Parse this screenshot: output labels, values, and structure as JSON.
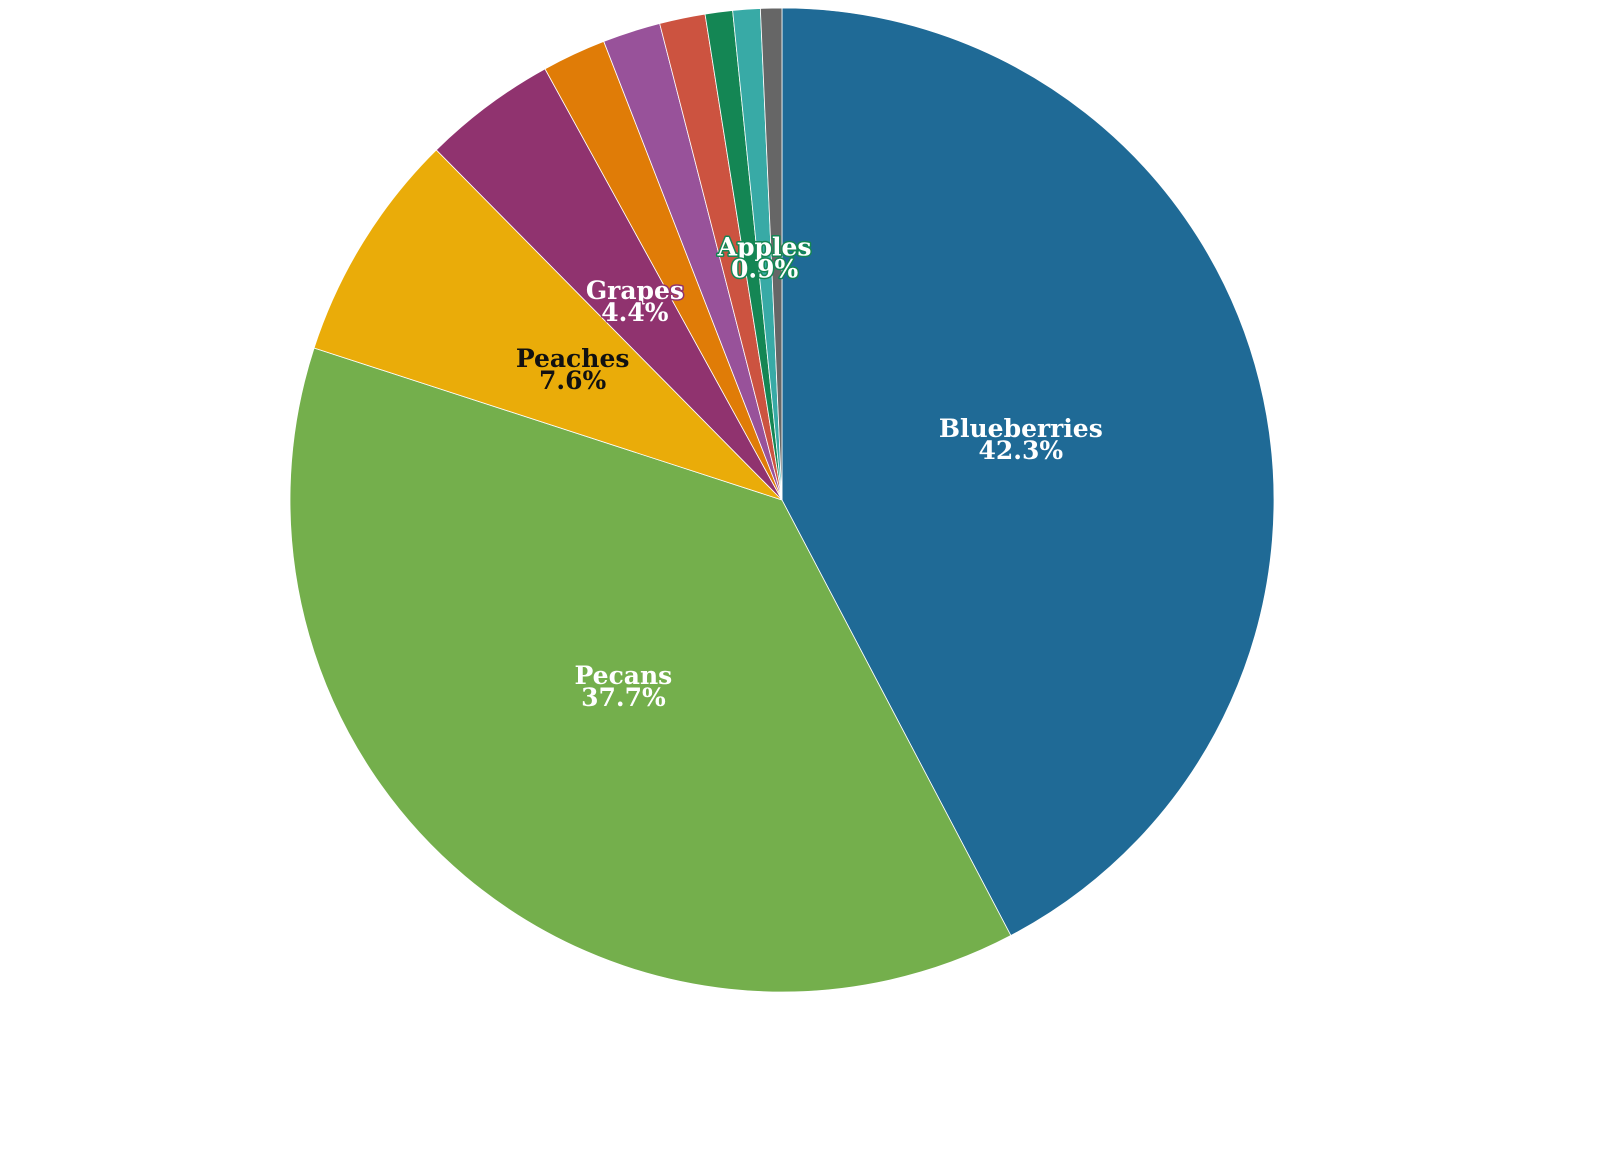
{
  "chart_data": {
    "type": "pie",
    "slices": [
      {
        "label": "Blueberries",
        "value": 42.3,
        "percent_label": "42.3%",
        "color": "#1f6a96",
        "show_label": true,
        "text_color": "#ffffff",
        "halo": "#1f6a96"
      },
      {
        "label": "Pecans",
        "value": 37.7,
        "percent_label": "37.7%",
        "color": "#74af4c",
        "show_label": true,
        "text_color": "#ffffff",
        "halo": "#74af4c"
      },
      {
        "label": "Peaches",
        "value": 7.6,
        "percent_label": "7.6%",
        "color": "#eaac09",
        "show_label": true,
        "text_color": "#111111",
        "halo": "#eaac09"
      },
      {
        "label": "Grapes",
        "value": 4.4,
        "percent_label": "4.4%",
        "color": "#90336f",
        "show_label": true,
        "text_color": "#ffffff",
        "halo": "#90336f"
      },
      {
        "label": "",
        "value": 2.1,
        "percent_label": "",
        "color": "#e07c07",
        "show_label": false
      },
      {
        "label": "",
        "value": 1.9,
        "percent_label": "",
        "color": "#98529a",
        "show_label": false
      },
      {
        "label": "",
        "value": 1.5,
        "percent_label": "",
        "color": "#cc5340",
        "show_label": false
      },
      {
        "label": "",
        "value": 0.9,
        "percent_label": "",
        "color": "#148654",
        "show_label": false
      },
      {
        "label": "Apples",
        "value": 0.9,
        "percent_label": "0.9%",
        "color": "#38aaa6",
        "show_label": true,
        "text_color": "#ffffff",
        "halo": "#148654"
      },
      {
        "label": "",
        "value": 0.7,
        "percent_label": "",
        "color": "#666666",
        "show_label": false
      }
    ]
  }
}
